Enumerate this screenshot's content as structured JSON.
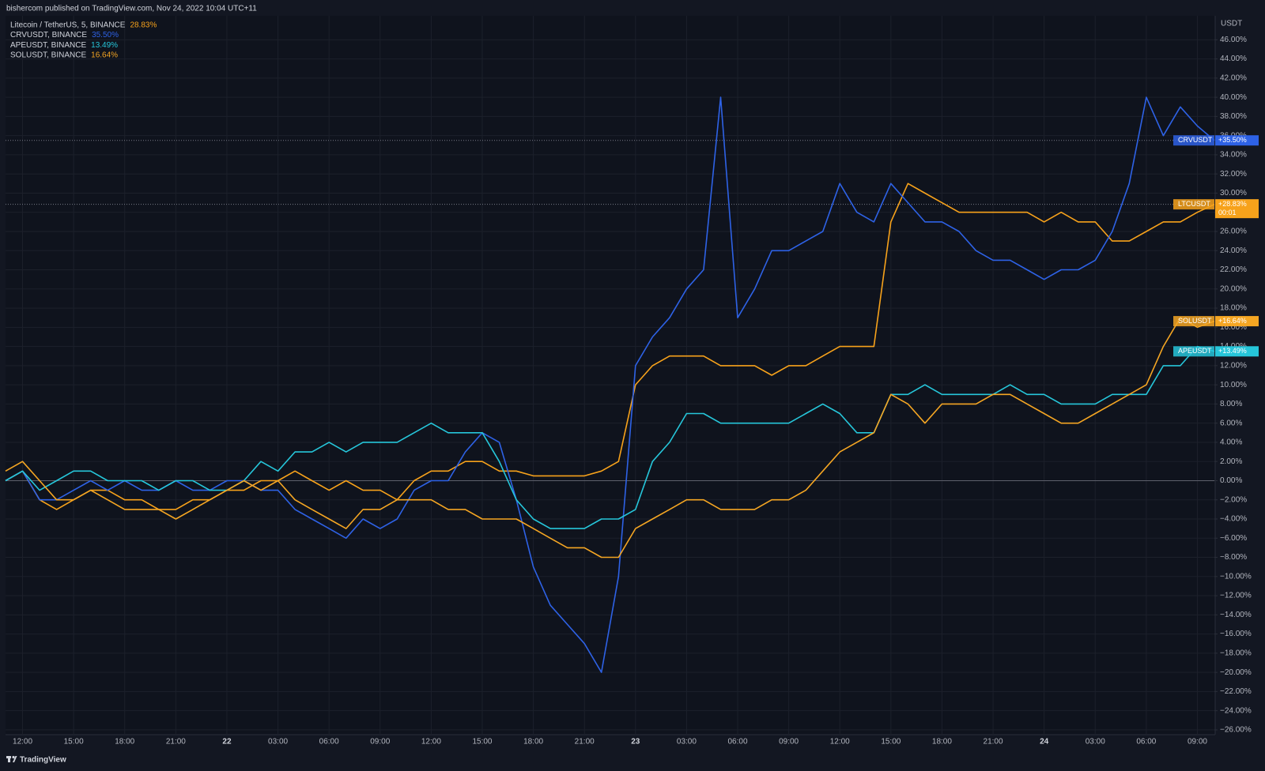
{
  "header": "bishercom published on TradingView.com, Nov 24, 2022 10:04 UTC+11",
  "footer": "TradingView",
  "chart_data": {
    "type": "line",
    "y_axis_label": "USDT",
    "ylim": [
      -26.5,
      48.5
    ],
    "grid": true,
    "zero_line": 0,
    "categories": [
      null,
      "12:00",
      null,
      null,
      "15:00",
      null,
      null,
      "18:00",
      null,
      null,
      "21:00",
      null,
      null,
      "22",
      null,
      null,
      "03:00",
      null,
      null,
      "06:00",
      null,
      null,
      "09:00",
      null,
      null,
      "12:00",
      null,
      null,
      "15:00",
      null,
      null,
      "18:00",
      null,
      null,
      "21:00",
      null,
      null,
      "23",
      null,
      null,
      "03:00",
      null,
      null,
      "06:00",
      null,
      null,
      "09:00",
      null,
      null,
      "12:00",
      null,
      null,
      "15:00",
      null,
      null,
      "18:00",
      null,
      null,
      "21:00",
      null,
      null,
      "24",
      null,
      null,
      "03:00",
      null,
      null,
      "06:00",
      null,
      null,
      "09:00",
      null
    ],
    "yticks": [
      {
        "value": -26,
        "label": "−26.00%"
      },
      {
        "value": -24,
        "label": "−24.00%"
      },
      {
        "value": -22,
        "label": "−22.00%"
      },
      {
        "value": -20,
        "label": "−20.00%"
      },
      {
        "value": -18,
        "label": "−18.00%"
      },
      {
        "value": -16,
        "label": "−16.00%"
      },
      {
        "value": -14,
        "label": "−14.00%"
      },
      {
        "value": -12,
        "label": "−12.00%"
      },
      {
        "value": -10,
        "label": "−10.00%"
      },
      {
        "value": -8,
        "label": "−8.00%"
      },
      {
        "value": -6,
        "label": "−6.00%"
      },
      {
        "value": -4,
        "label": "−4.00%"
      },
      {
        "value": -2,
        "label": "−2.00%"
      },
      {
        "value": 0,
        "label": "0.00%"
      },
      {
        "value": 2,
        "label": "2.00%"
      },
      {
        "value": 4,
        "label": "4.00%"
      },
      {
        "value": 6,
        "label": "6.00%"
      },
      {
        "value": 8,
        "label": "8.00%"
      },
      {
        "value": 10,
        "label": "10.00%"
      },
      {
        "value": 12,
        "label": "12.00%"
      },
      {
        "value": 14,
        "label": "14.00%"
      },
      {
        "value": 16,
        "label": "16.00%"
      },
      {
        "value": 18,
        "label": "18.00%"
      },
      {
        "value": 20,
        "label": "20.00%"
      },
      {
        "value": 22,
        "label": "22.00%"
      },
      {
        "value": 24,
        "label": "24.00%"
      },
      {
        "value": 26,
        "label": "26.00%"
      },
      {
        "value": 28,
        "label": "28.00%"
      },
      {
        "value": 30,
        "label": "30.00%"
      },
      {
        "value": 32,
        "label": "32.00%"
      },
      {
        "value": 34,
        "label": "34.00%"
      },
      {
        "value": 36,
        "label": "36.00%"
      },
      {
        "value": 38,
        "label": "38.00%"
      },
      {
        "value": 40,
        "label": "40.00%"
      },
      {
        "value": 42,
        "label": "42.00%"
      },
      {
        "value": 44,
        "label": "44.00%"
      },
      {
        "value": 46,
        "label": "46.00%"
      }
    ],
    "series": [
      {
        "name": "Litecoin / TetherUS, 5, BINANCE",
        "symbol": "LTCUSDT",
        "color": "#f7a21b",
        "last_label": "28.83%",
        "tag_label": "+28.83%",
        "countdown": "00:01",
        "price_line": true,
        "values": [
          0,
          1,
          -2,
          -3,
          -2,
          -1,
          -1,
          -2,
          -2,
          -3,
          -3,
          -2,
          -2,
          -1,
          -1,
          0,
          0,
          1,
          0,
          -1,
          0,
          -1,
          -1,
          -2,
          0,
          1,
          1,
          2,
          2,
          1,
          1,
          0.5,
          0.5,
          0.5,
          0.5,
          1,
          2,
          10,
          12,
          13,
          13,
          13,
          12,
          12,
          12,
          11,
          12,
          12,
          13,
          14,
          14,
          14,
          27,
          31,
          30,
          29,
          28,
          28,
          28,
          28,
          28,
          27,
          28,
          27,
          27,
          25,
          25,
          26,
          27,
          27,
          28,
          28.83
        ]
      },
      {
        "name": "CRVUSDT, BINANCE",
        "symbol": "CRVUSDT",
        "color": "#2e62e6",
        "last_label": "35.50%",
        "tag_label": "+35.50%",
        "price_line": true,
        "values": [
          0,
          1,
          -2,
          -2,
          -1,
          0,
          -1,
          0,
          -1,
          -1,
          0,
          -1,
          -1,
          0,
          0,
          -1,
          -1,
          -3,
          -4,
          -5,
          -6,
          -4,
          -5,
          -4,
          -1,
          0,
          0,
          3,
          5,
          4,
          -2,
          -9,
          -13,
          -15,
          -17,
          -20,
          -10,
          12,
          15,
          17,
          20,
          22,
          40,
          17,
          20,
          24,
          24,
          25,
          26,
          31,
          28,
          27,
          31,
          29,
          27,
          27,
          26,
          24,
          23,
          23,
          22,
          21,
          22,
          22,
          23,
          26,
          31,
          40,
          36,
          39,
          37,
          35.5
        ]
      },
      {
        "name": "APEUSDT, BINANCE",
        "symbol": "APEUSDT",
        "color": "#26c6da",
        "last_label": "13.49%",
        "tag_label": "+13.49%",
        "price_line": false,
        "values": [
          0,
          1,
          -1,
          0,
          1,
          1,
          0,
          0,
          0,
          -1,
          0,
          0,
          -1,
          -1,
          0,
          2,
          1,
          3,
          3,
          4,
          3,
          4,
          4,
          4,
          5,
          6,
          5,
          5,
          5,
          2,
          -2,
          -4,
          -5,
          -5,
          -5,
          -4,
          -4,
          -3,
          2,
          4,
          7,
          7,
          6,
          6,
          6,
          6,
          6,
          7,
          8,
          7,
          5,
          5,
          9,
          9,
          10,
          9,
          9,
          9,
          9,
          10,
          9,
          9,
          8,
          8,
          8,
          9,
          9,
          9,
          12,
          12,
          14,
          13.49
        ]
      },
      {
        "name": "SOLUSDT, BINANCE",
        "symbol": "SOLUSDT",
        "color": "#f5a623",
        "last_label": "16.64%",
        "tag_label": "+16.64%",
        "price_line": false,
        "values": [
          1,
          2,
          0,
          -2,
          -2,
          -1,
          -2,
          -3,
          -3,
          -3,
          -4,
          -3,
          -2,
          -1,
          0,
          -1,
          0,
          -2,
          -3,
          -4,
          -5,
          -3,
          -3,
          -2,
          -2,
          -2,
          -3,
          -3,
          -4,
          -4,
          -4,
          -5,
          -6,
          -7,
          -7,
          -8,
          -8,
          -5,
          -4,
          -3,
          -2,
          -2,
          -3,
          -3,
          -3,
          -2,
          -2,
          -1,
          1,
          3,
          4,
          5,
          9,
          8,
          6,
          8,
          8,
          8,
          9,
          9,
          8,
          7,
          6,
          6,
          7,
          8,
          9,
          10,
          14,
          17,
          16,
          16.64
        ]
      }
    ]
  }
}
